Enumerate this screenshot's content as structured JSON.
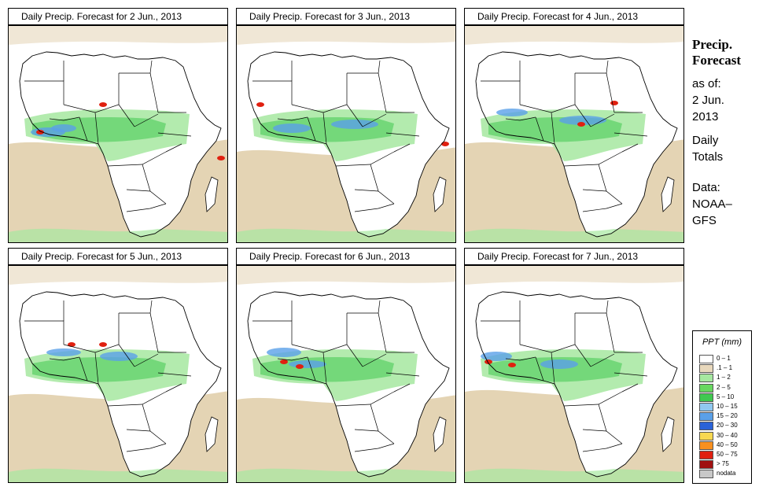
{
  "panels": [
    {
      "title": "Daily Precip. Forecast for  2 Jun., 2013"
    },
    {
      "title": "Daily Precip. Forecast for  3 Jun., 2013"
    },
    {
      "title": "Daily Precip. Forecast for  4 Jun., 2013"
    },
    {
      "title": "Daily Precip. Forecast for  5 Jun., 2013"
    },
    {
      "title": "Daily Precip. Forecast for  6 Jun., 2013"
    },
    {
      "title": "Daily Precip. Forecast for  7 Jun., 2013"
    }
  ],
  "sidebar": {
    "heading_line1": "Precip.",
    "heading_line2": "Forecast",
    "asof_line1": "as of:",
    "asof_line2": "2 Jun.",
    "asof_line3": "2013",
    "type_line1": "Daily",
    "type_line2": "Totals",
    "source_line1": "Data:",
    "source_line2": "NOAA–",
    "source_line3": "GFS"
  },
  "legend": {
    "title": "PPT (mm)",
    "items": [
      {
        "label": "0 – 1",
        "color": "#ffffff"
      },
      {
        "label": ".1 – 1",
        "color": "#e8d8bc"
      },
      {
        "label": "1 – 2",
        "color": "#a6e8a0"
      },
      {
        "label": "2 – 5",
        "color": "#68d860"
      },
      {
        "label": "5 – 10",
        "color": "#40c850"
      },
      {
        "label": "10 – 15",
        "color": "#90c8f0"
      },
      {
        "label": "15 – 20",
        "color": "#5aa0e8"
      },
      {
        "label": "20 – 30",
        "color": "#2a62d8"
      },
      {
        "label": "30 – 40",
        "color": "#f8d850"
      },
      {
        "label": "40 – 50",
        "color": "#f89020"
      },
      {
        "label": "50 – 75",
        "color": "#e02010"
      },
      {
        "label": "> 75",
        "color": "#a01010"
      },
      {
        "label": "nodata",
        "color": "#c8c8c8"
      }
    ]
  },
  "colors": {
    "dry": "#e4d4b4",
    "light": "#a6e8a0",
    "moderate": "#40c850",
    "heavy_blue": "#5aa0e8",
    "extreme": "#e02010",
    "border": "#000000"
  }
}
